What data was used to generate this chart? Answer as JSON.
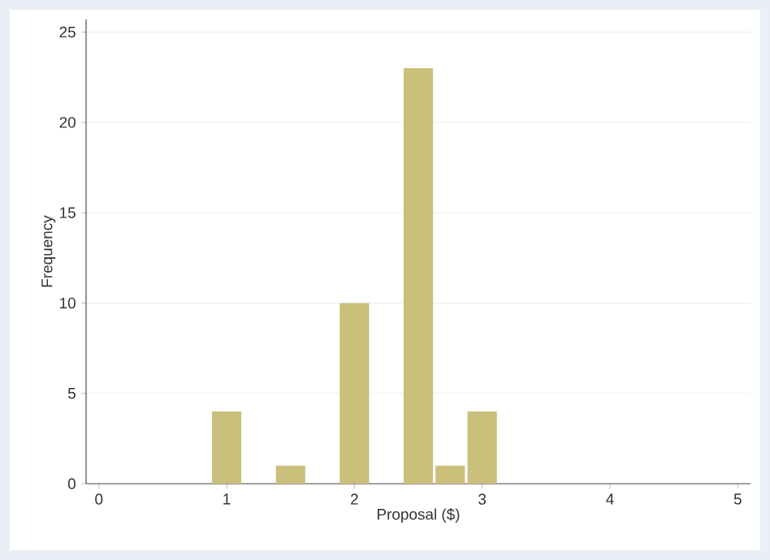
{
  "chart_data": {
    "type": "histogram",
    "xlabel": "Proposal ($)",
    "ylabel": "Frequency",
    "bins": [
      0.875,
      1.125,
      1.375,
      1.625,
      1.875,
      2.125,
      2.375,
      2.625,
      2.875,
      3.125
    ],
    "values": [
      4,
      0,
      1,
      0,
      10,
      0,
      23,
      1,
      4
    ],
    "color": "#cbbf7c",
    "xlim": [
      -0.1,
      5.1
    ],
    "ylim": [
      0,
      25.7
    ],
    "xticks": [
      0,
      1,
      2,
      3,
      4,
      5
    ],
    "yticks": [
      0,
      5,
      10,
      15,
      20,
      25
    ],
    "grid": "y"
  }
}
